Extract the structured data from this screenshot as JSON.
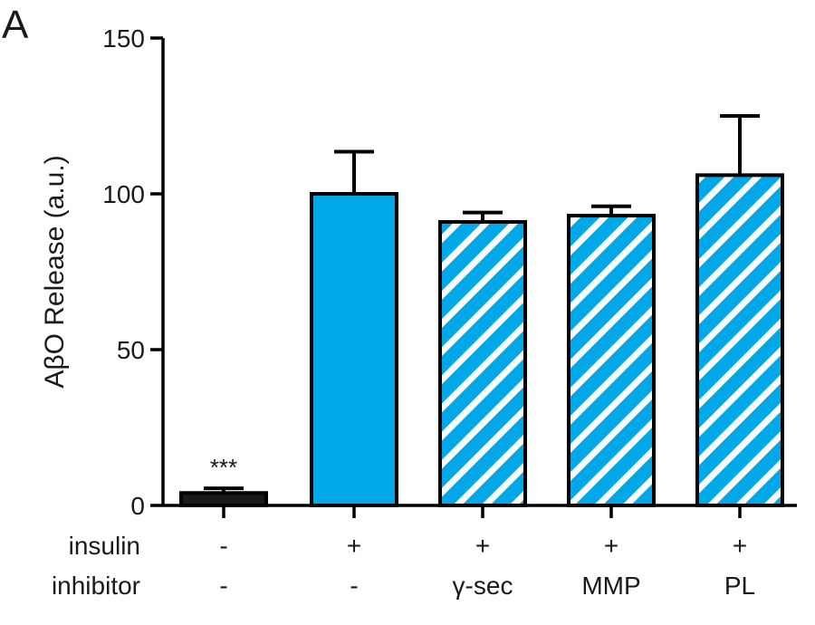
{
  "panel_label": "A",
  "chart_data": {
    "type": "bar",
    "ylabel": "AβO Release (a.u.)",
    "ylim": [
      0,
      150
    ],
    "yticks": [
      0,
      50,
      100,
      150
    ],
    "grid": false,
    "legend": "none",
    "categories": [
      {
        "insulin": "-",
        "inhibitor": "-"
      },
      {
        "insulin": "+",
        "inhibitor": "-"
      },
      {
        "insulin": "+",
        "inhibitor": "γ-sec"
      },
      {
        "insulin": "+",
        "inhibitor": "MMP"
      },
      {
        "insulin": "+",
        "inhibitor": "PL"
      }
    ],
    "values": [
      4,
      100,
      91,
      93,
      106
    ],
    "errors": [
      1.5,
      13.5,
      3,
      3,
      19
    ],
    "fills": [
      "solid-black",
      "solid-blue",
      "hatched-blue",
      "hatched-blue",
      "hatched-blue"
    ],
    "annotations": [
      {
        "bar": 0,
        "text": "***"
      }
    ],
    "row_labels": {
      "insulin": "insulin",
      "inhibitor": "inhibitor"
    }
  },
  "colors": {
    "blue": "#00a8e8",
    "black": "#1a1a1a",
    "hatch": "#ffffff"
  }
}
